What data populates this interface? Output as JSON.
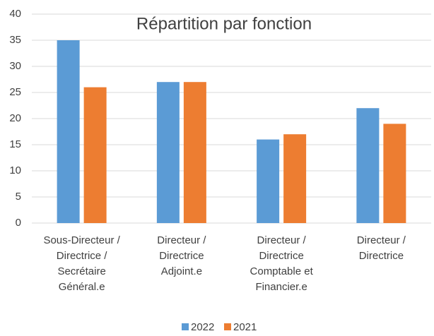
{
  "chart_data": {
    "type": "bar",
    "title": "Répartition par fonction",
    "categories": [
      "Sous-Directeur / Directrice / Secrétaire Général.e",
      "Directeur / Directrice Adjoint.e",
      "Directeur / Directrice Comptable et Financier.e",
      "Directeur / Directrice"
    ],
    "series": [
      {
        "name": "2022",
        "color": "#5b9bd5",
        "values": [
          35,
          27,
          16,
          22
        ]
      },
      {
        "name": "2021",
        "color": "#ed7d31",
        "values": [
          26,
          27,
          17,
          19
        ]
      }
    ],
    "ylim": [
      0,
      40
    ],
    "yticks": [
      0,
      5,
      10,
      15,
      20,
      25,
      30,
      35,
      40
    ],
    "grid": true,
    "legend": "bottom"
  }
}
